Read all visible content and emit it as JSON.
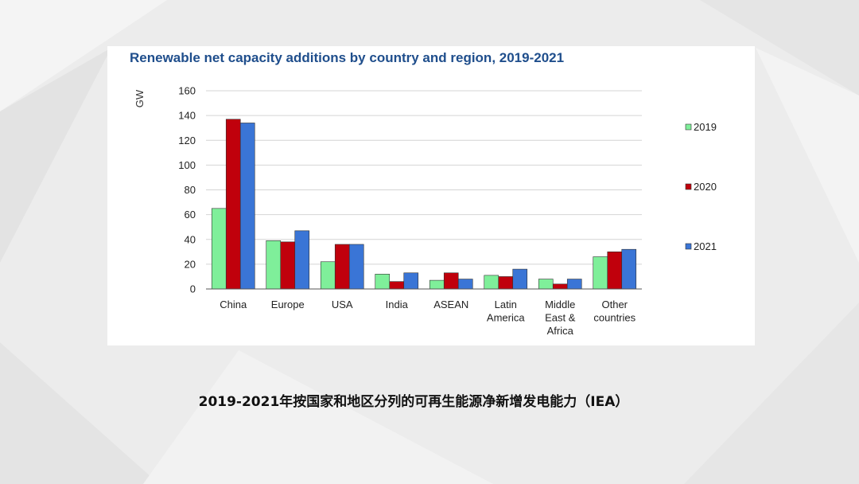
{
  "chart_data": {
    "type": "bar",
    "title": "Renewable net capacity additions by country and region, 2019-2021",
    "xlabel": "",
    "ylabel": "GW",
    "ylim": [
      0,
      160
    ],
    "yticks": [
      0,
      20,
      40,
      60,
      80,
      100,
      120,
      140,
      160
    ],
    "grid": true,
    "legend_position": "right",
    "categories": [
      [
        "China"
      ],
      [
        "Europe"
      ],
      [
        "USA"
      ],
      [
        "India"
      ],
      [
        "ASEAN"
      ],
      [
        "Latin",
        "America"
      ],
      [
        "Middle",
        "East &",
        "Africa"
      ],
      [
        "Other",
        "countries"
      ]
    ],
    "series": [
      {
        "name": "2019",
        "color": "#7fef9a",
        "values": [
          65,
          39,
          22,
          12,
          7,
          11,
          8,
          26
        ]
      },
      {
        "name": "2020",
        "color": "#c0000c",
        "values": [
          137,
          38,
          36,
          6,
          13,
          10,
          4,
          30
        ]
      },
      {
        "name": "2021",
        "color": "#3a75d6",
        "values": [
          134,
          47,
          36,
          13,
          8,
          16,
          8,
          32
        ]
      }
    ]
  },
  "caption": "2019-2021年按国家和地区分列的可再生能源净新增发电能力（IEA）"
}
